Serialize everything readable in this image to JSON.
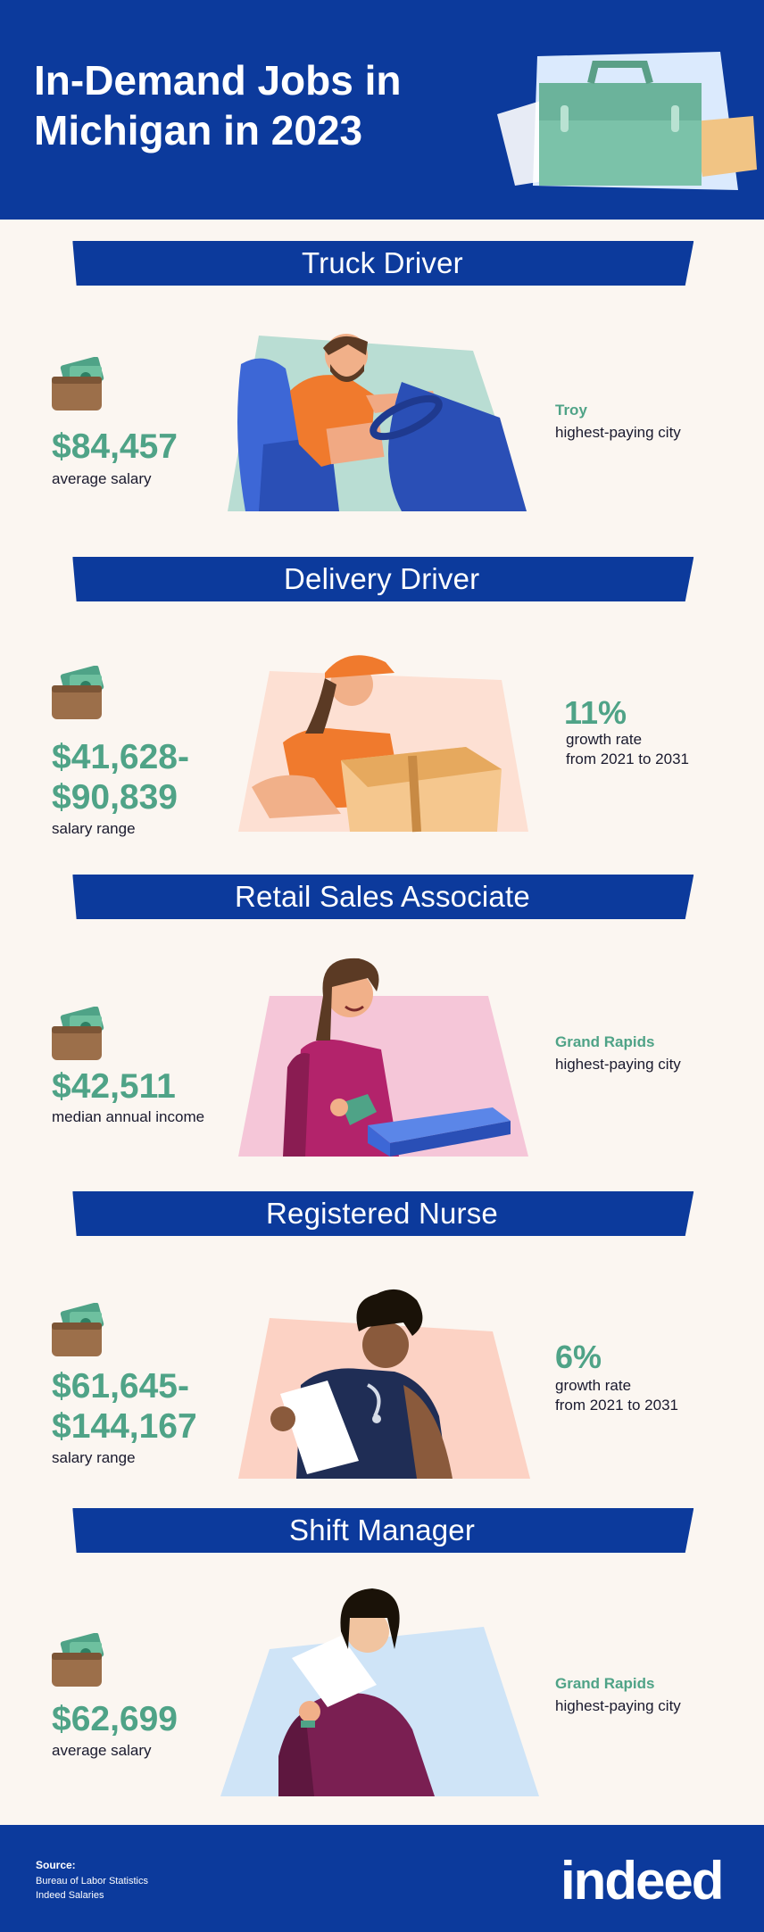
{
  "header": {
    "title": "In-Demand Jobs in Michigan in 2023"
  },
  "jobs": [
    {
      "title": "Truck Driver",
      "amount": "$84,457",
      "amount_caption": "average salary",
      "right_highlight": "Troy",
      "right_caption": "highest-paying city"
    },
    {
      "title": "Delivery Driver",
      "amount_line1": "$41,628-",
      "amount_line2": "$90,839",
      "amount_caption": "salary range",
      "right_highlight": "11%",
      "right_caption_line1": "growth rate",
      "right_caption_line2": "from 2021 to 2031"
    },
    {
      "title": "Retail Sales Associate",
      "amount": "$42,511",
      "amount_caption": "median annual income",
      "right_highlight": "Grand Rapids",
      "right_caption": "highest-paying city"
    },
    {
      "title": "Registered Nurse",
      "amount_line1": "$61,645-",
      "amount_line2": "$144,167",
      "amount_caption": "salary range",
      "right_highlight": "6%",
      "right_caption_line1": "growth rate",
      "right_caption_line2": "from 2021 to 2031"
    },
    {
      "title": "Shift Manager",
      "amount": "$62,699",
      "amount_caption": "average salary",
      "right_highlight": "Grand Rapids",
      "right_caption": "highest-paying city"
    }
  ],
  "footer": {
    "source_label": "Source:",
    "source_1": "Bureau of Labor Statistics",
    "source_2": "Indeed Salaries",
    "logo_text": "indeed"
  },
  "colors": {
    "navy": "#0c3a9c",
    "accent_green": "#4fa387",
    "background": "#fbf6f1"
  },
  "icons": [
    "briefcase-icon",
    "wallet-icon",
    "truck-driver-illustration",
    "delivery-driver-illustration",
    "retail-associate-illustration",
    "nurse-illustration",
    "shift-manager-illustration"
  ]
}
